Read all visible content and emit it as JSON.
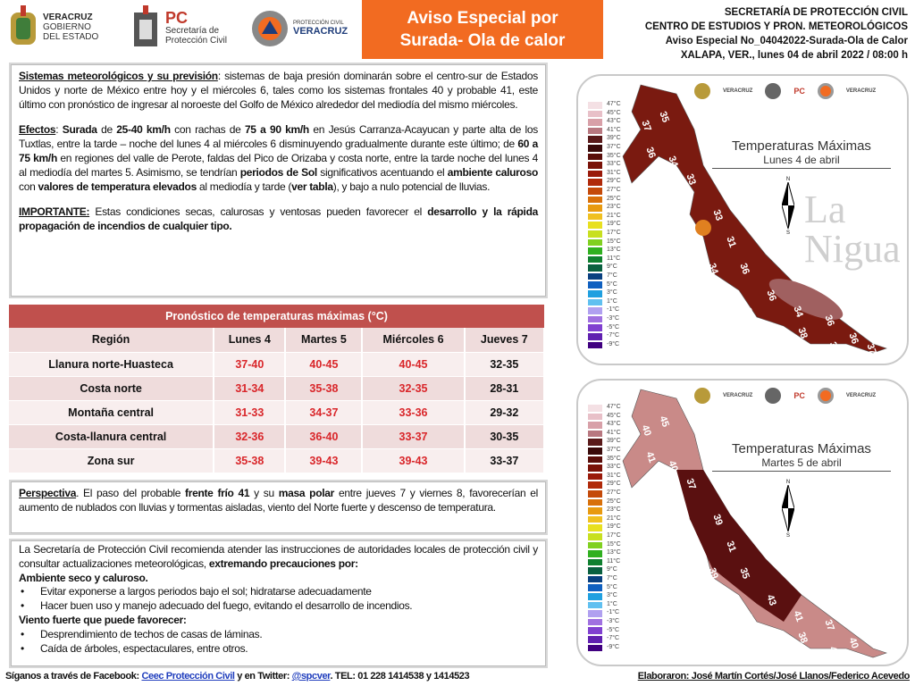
{
  "header": {
    "logo1": {
      "line1": "VERACRUZ",
      "line2": "GOBIERNO",
      "line3": "DEL ESTADO"
    },
    "logo2": {
      "abbr": "PC",
      "line1": "Secretaría de",
      "line2": "Protección Civil"
    },
    "logo3": {
      "line1": "PROTECCIÓN CIVIL",
      "line2": "VERACRUZ"
    },
    "title_line1": "Aviso Especial por",
    "title_line2": "Surada- Ola de calor",
    "right": [
      "SECRETARÍA DE PROTECCIÓN CIVIL",
      "CENTRO DE ESTUDIOS Y PRON. METEOROLÓGICOS",
      "Aviso Especial No_04042022-Surada-Ola de Calor",
      "XALAPA, VER., lunes 04 de abril 2022 / 08:00 h"
    ]
  },
  "main": {
    "p1": [
      {
        "t": "Sistemas meteorológicos y su previsión",
        "s": "bu"
      },
      {
        "t": ": sistemas de baja presión dominarán sobre el centro-sur de Estados Unidos y norte de México entre hoy y el miércoles 6, tales como los sistemas frontales 40 y probable 41, este último con pronóstico de ingresar al noroeste del Golfo de México alrededor del mediodía del mismo miércoles."
      }
    ],
    "p2": [
      {
        "t": "Efectos",
        "s": "bu"
      },
      {
        "t": ": "
      },
      {
        "t": "Surada",
        "s": "b"
      },
      {
        "t": " de "
      },
      {
        "t": "25-40 km/h",
        "s": "b"
      },
      {
        "t": " con rachas de "
      },
      {
        "t": "75 a 90 km/h",
        "s": "b"
      },
      {
        "t": " en Jesús Carranza-Acayucan y parte alta de los Tuxtlas, entre la tarde – noche del lunes 4 al miércoles 6 disminuyendo gradualmente durante este último; de "
      },
      {
        "t": "60 a 75 km/h",
        "s": "b"
      },
      {
        "t": " en regiones del valle de Perote, faldas del Pico de Orizaba y costa norte, entre la tarde noche del lunes 4 al mediodía del martes 5.  Asimismo, se tendrían "
      },
      {
        "t": "periodos de Sol",
        "s": "b"
      },
      {
        "t": " significativos acentuando el "
      },
      {
        "t": "ambiente caluroso",
        "s": "b"
      },
      {
        "t": " con "
      },
      {
        "t": "valores de temperatura elevados",
        "s": "b"
      },
      {
        "t": " al mediodía y tarde ("
      },
      {
        "t": "ver tabla",
        "s": "b"
      },
      {
        "t": "), y bajo a nulo potencial de lluvias."
      }
    ],
    "p3": [
      {
        "t": "IMPORTANTE:",
        "s": "bu"
      },
      {
        "t": " Estas condiciones secas, calurosas y ventosas pueden favorecer el "
      },
      {
        "t": "desarrollo y la rápida propagación de incendios de cualquier tipo.",
        "s": "b"
      }
    ]
  },
  "table": {
    "caption": "Pronóstico de temperaturas máximas (°C)",
    "headers": [
      "Región",
      "Lunes 4",
      "Martes 5",
      "Miércoles 6",
      "Jueves 7"
    ],
    "rows": [
      [
        "Llanura norte-Huasteca",
        "37-40",
        "40-45",
        "40-45",
        "32-35"
      ],
      [
        "Costa norte",
        "31-34",
        "35-38",
        "32-35",
        "28-31"
      ],
      [
        "Montaña central",
        "31-33",
        "34-37",
        "33-36",
        "29-32"
      ],
      [
        "Costa-llanura central",
        "32-36",
        "36-40",
        "33-37",
        "30-35"
      ],
      [
        "Zona sur",
        "35-38",
        "39-43",
        "39-43",
        "33-37"
      ]
    ],
    "watermark": "La Nigua",
    "highlight_color": "#d9262a"
  },
  "perspectiva": [
    {
      "t": "Perspectiva",
      "s": "bu"
    },
    {
      "t": ". El paso del probable "
    },
    {
      "t": "frente frío 41",
      "s": "b"
    },
    {
      "t": " y su "
    },
    {
      "t": "masa polar",
      "s": "b"
    },
    {
      "t": " entre jueves 7 y viernes 8, favorecerían el aumento de nublados con lluvias y tormentas aisladas, viento del Norte fuerte y descenso de temperatura."
    }
  ],
  "recomendaciones": {
    "intro": [
      {
        "t": "La Secretaría de Protección Civil recomienda atender las instrucciones de autoridades locales de protección civil y consultar actualizaciones meteorológicas, "
      },
      {
        "t": "extremando precauciones por:",
        "s": "b"
      }
    ],
    "h1": "Ambiente seco y caluroso.",
    "l1": [
      "Evitar exponerse a largos periodos bajo el sol; hidratarse adecuadamente",
      "Hacer buen uso y manejo adecuado del fuego, evitando el desarrollo de incendios."
    ],
    "h2": "Viento fuerte que puede favorecer:",
    "l2": [
      "Desprendimiento de techos de casas de láminas.",
      "Caída de árboles, espectaculares, entre otros."
    ]
  },
  "footer": {
    "pre": "Síganos a través de Facebook: ",
    "fb": "Ceec Protección Civil",
    "mid": "  y en Twitter: ",
    "tw": "@spcver",
    "tel": ".  TEL:  01 228 1414538 y 1414523",
    "credits": "Elaboraron: José Martín Cortés/José Llanos/Federico Acevedo"
  },
  "maps": [
    {
      "title": "Temperaturas Máximas",
      "subtitle": "Lunes 4 de abril",
      "fill": "#7a1a10",
      "labels": [
        "35",
        "37",
        "36",
        "34",
        "33",
        "34",
        "33",
        "31",
        "29",
        "34",
        "36",
        "31",
        "36",
        "39",
        "36",
        "34",
        "38",
        "36",
        "36",
        "39",
        "38",
        "37"
      ]
    },
    {
      "title": "Temperaturas Máximas",
      "subtitle": "Martes 5 de abril",
      "fill": "#c98a88",
      "labels": [
        "45",
        "40",
        "41",
        "40",
        "37",
        "40",
        "39",
        "31",
        "34",
        "39",
        "35",
        "42",
        "41",
        "44",
        "43",
        "41",
        "38",
        "37",
        "40",
        "38",
        "40"
      ]
    }
  ],
  "map_logos": {
    "l1": "VERACRUZ",
    "l2": "PC",
    "l3": "VERACRUZ"
  },
  "compass": {
    "n": "N",
    "s": "S"
  },
  "legend": [
    "47°C",
    "45°C",
    "43°C",
    "41°C",
    "39°C",
    "37°C",
    "35°C",
    "33°C",
    "31°C",
    "29°C",
    "27°C",
    "25°C",
    "23°C",
    "21°C",
    "19°C",
    "17°C",
    "15°C",
    "13°C",
    "11°C",
    "9°C",
    "7°C",
    "5°C",
    "3°C",
    "1°C",
    "-1°C",
    "-3°C",
    "-5°C",
    "-7°C",
    "-9°C"
  ]
}
